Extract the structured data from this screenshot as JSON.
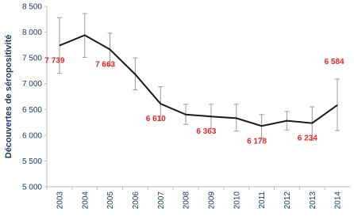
{
  "chart_data": {
    "type": "line",
    "y_label": "Découvertes de séropositivité",
    "categories": [
      "2003",
      "2004",
      "2005",
      "2006",
      "2007",
      "2008",
      "2009",
      "2010",
      "2011",
      "2012",
      "2013",
      "2014"
    ],
    "values": [
      7739,
      7940,
      7663,
      7180,
      6610,
      6400,
      6363,
      6330,
      6178,
      6280,
      6234,
      6584
    ],
    "value_labels": [
      "7 739",
      null,
      "7 663",
      null,
      "6 610",
      null,
      "6 363",
      null,
      "6 178",
      null,
      "6 234",
      "6 584"
    ],
    "upper": [
      8280,
      8360,
      7980,
      7500,
      6940,
      6600,
      6600,
      6600,
      6400,
      6460,
      6550,
      7090
    ],
    "lower": [
      7200,
      7510,
      7360,
      6880,
      6290,
      6210,
      6130,
      6080,
      5950,
      6100,
      5900,
      6090
    ],
    "color": "#1a1a1a",
    "error_color": "#999999",
    "ylim": [
      5000,
      8500
    ],
    "yticks": [
      {
        "value": 5000,
        "label": "5 000"
      },
      {
        "value": 5500,
        "label": "5 500"
      },
      {
        "value": 6000,
        "label": "6 000"
      },
      {
        "value": 6500,
        "label": "6 500"
      },
      {
        "value": 7000,
        "label": "7 000"
      },
      {
        "value": 7500,
        "label": "7 500"
      },
      {
        "value": 8000,
        "label": "8 000"
      },
      {
        "value": 8500,
        "label": "8 500"
      }
    ],
    "grid": false
  }
}
